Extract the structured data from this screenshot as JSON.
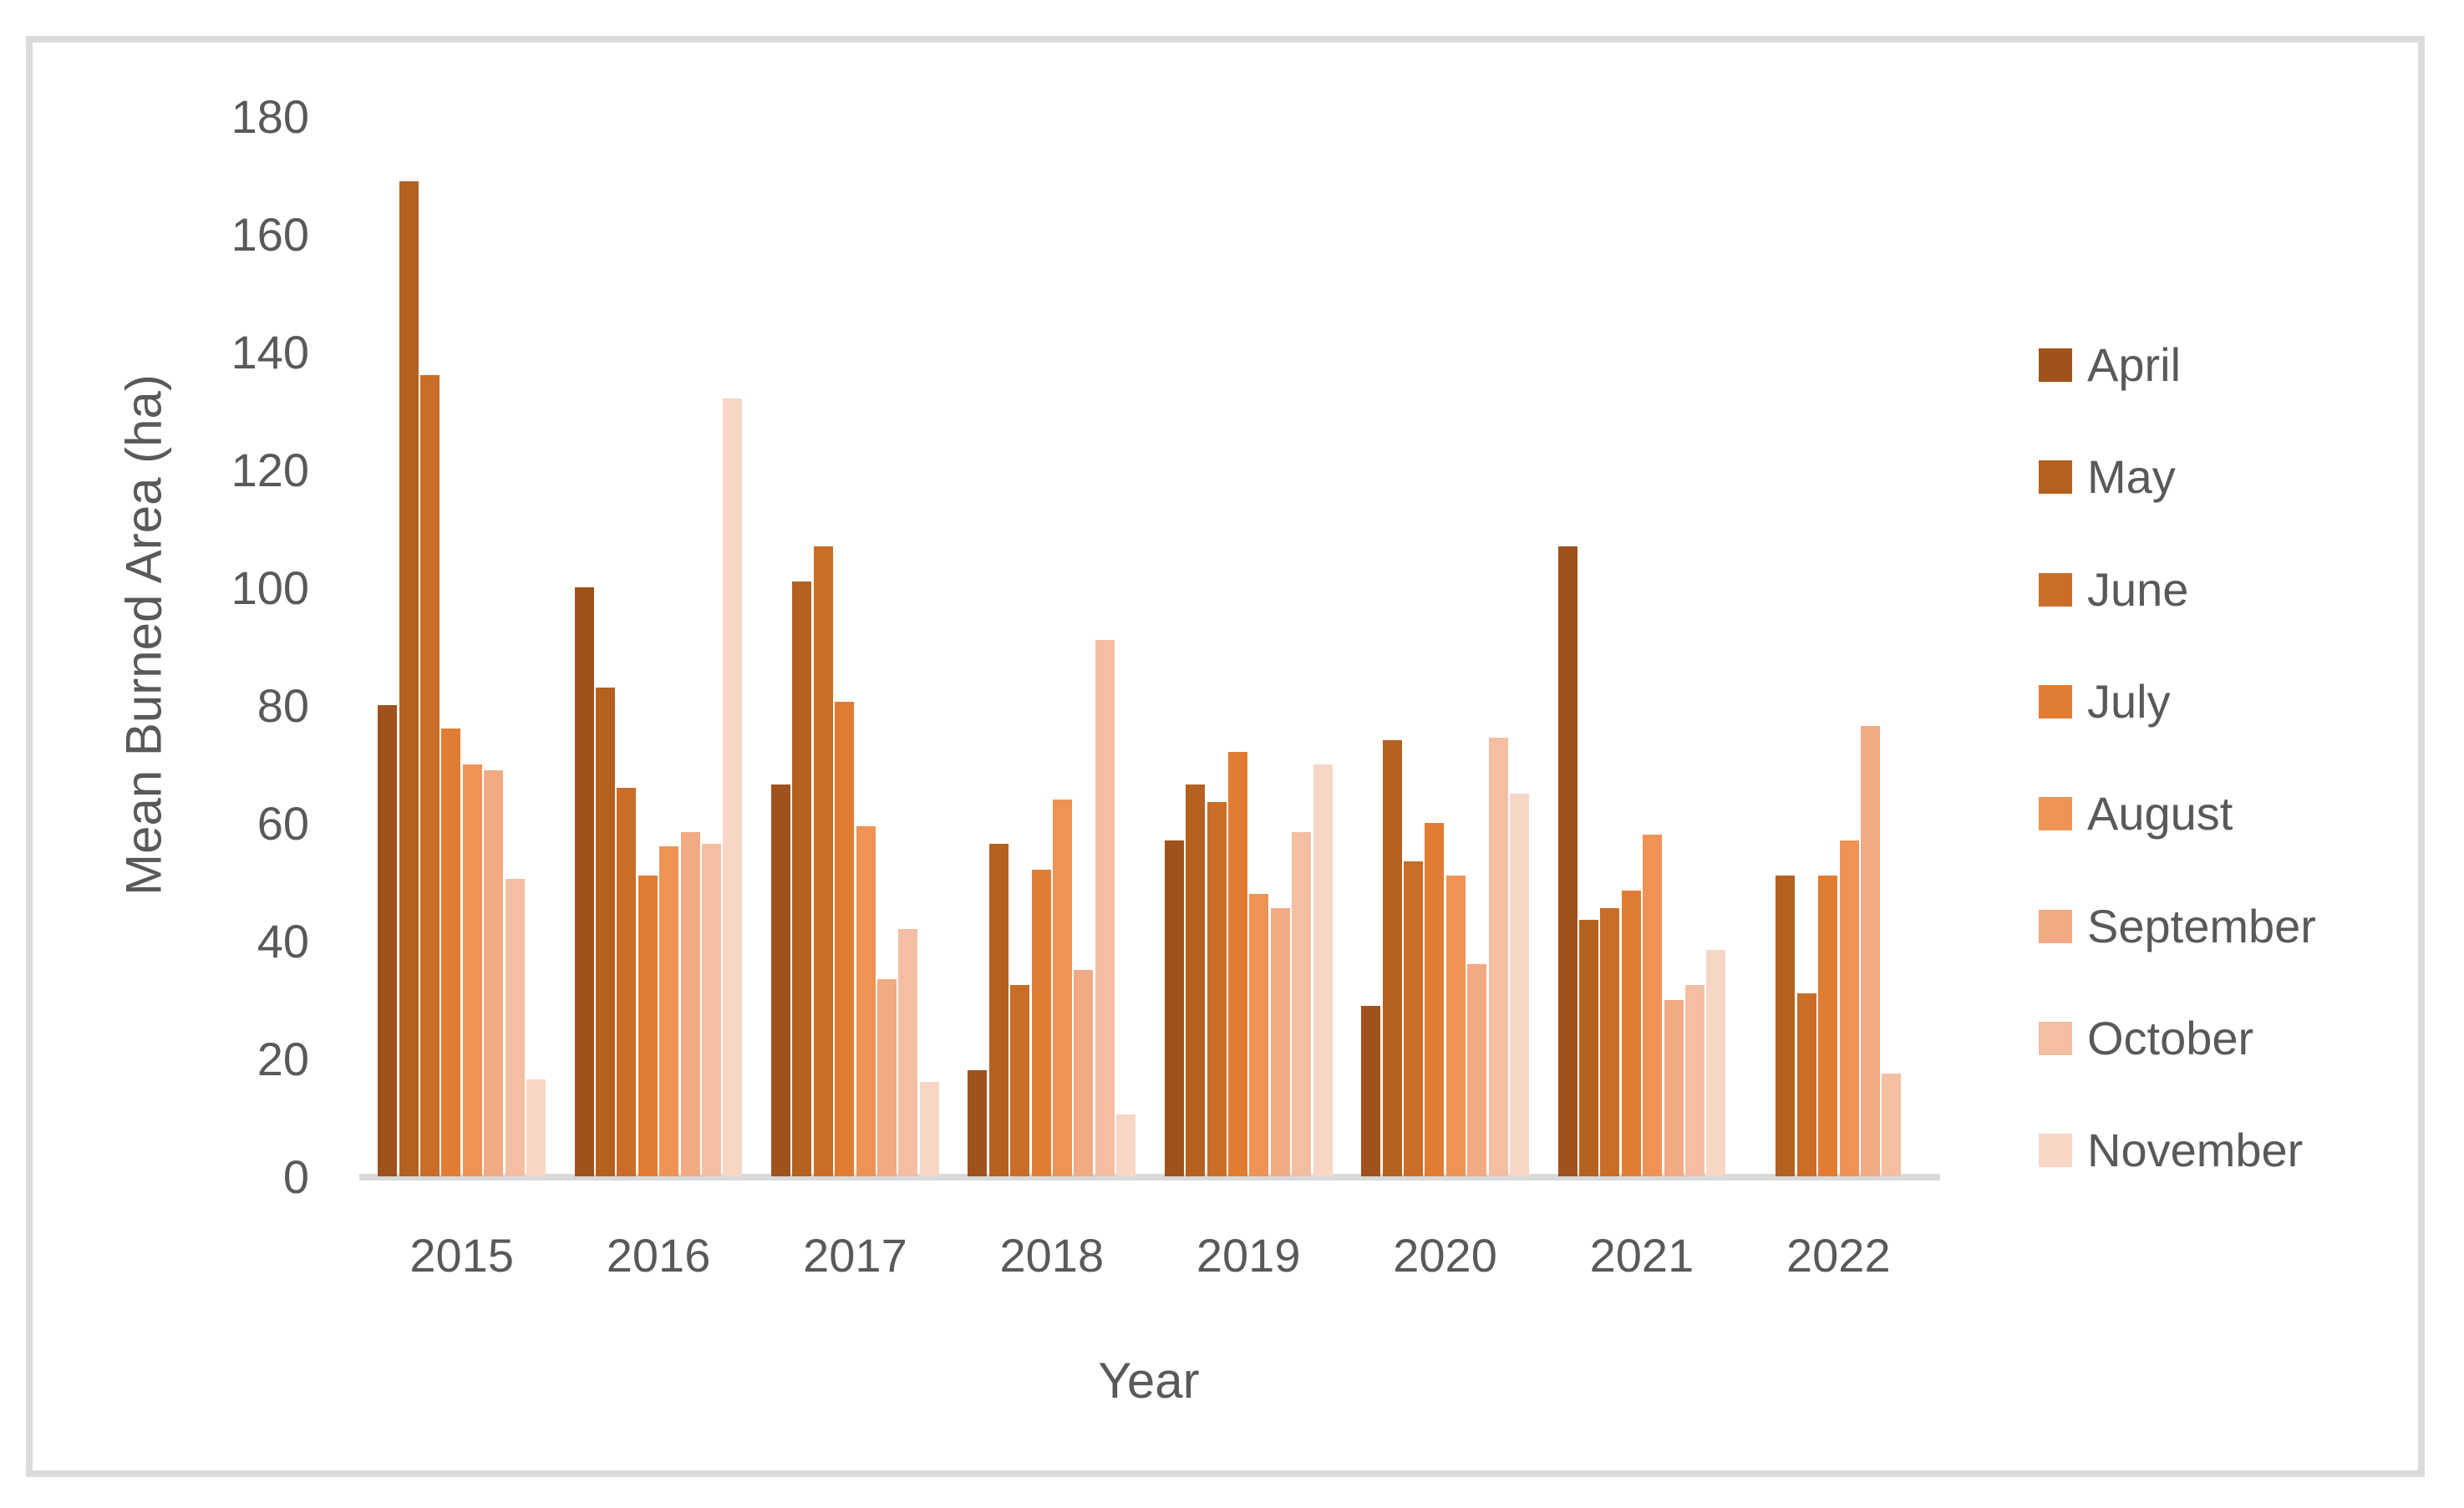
{
  "chart_data": {
    "type": "bar",
    "title": "",
    "xlabel": "Year",
    "ylabel": "Mean Burned Area (ha)",
    "ylim": [
      0,
      180
    ],
    "yticks": [
      0,
      20,
      40,
      60,
      80,
      100,
      120,
      140,
      160,
      180
    ],
    "grid": false,
    "legend_position": "right",
    "categories": [
      "2015",
      "2016",
      "2017",
      "2018",
      "2019",
      "2020",
      "2021",
      "2022"
    ],
    "series": [
      {
        "name": "April",
        "color": "#a0521d",
        "values": [
          80,
          100,
          66.5,
          18,
          57,
          29,
          107,
          null
        ]
      },
      {
        "name": "May",
        "color": "#b4611f",
        "values": [
          169,
          83,
          101,
          56.5,
          66.5,
          74,
          43.5,
          51
        ]
      },
      {
        "name": "June",
        "color": "#c96d28",
        "values": [
          136,
          66,
          107,
          32.5,
          63.5,
          53.5,
          45.5,
          31
        ]
      },
      {
        "name": "July",
        "color": "#e17d33",
        "values": [
          76,
          51,
          80.5,
          52,
          72,
          60,
          48.5,
          51
        ]
      },
      {
        "name": "August",
        "color": "#ee9355",
        "values": [
          70,
          56,
          59.5,
          64,
          48,
          51,
          58,
          57
        ]
      },
      {
        "name": "September",
        "color": "#f1aa83",
        "values": [
          69,
          58.5,
          33.5,
          35,
          45.5,
          36,
          30,
          76.5
        ]
      },
      {
        "name": "October",
        "color": "#f4bea2",
        "values": [
          50.5,
          56.5,
          42,
          91,
          58.5,
          74.5,
          32.5,
          17.5
        ]
      },
      {
        "name": "November",
        "color": "#f8d6c6",
        "values": [
          16.5,
          132,
          16,
          10.5,
          70,
          65,
          38.5,
          null
        ]
      }
    ]
  },
  "colors": {
    "axis_line": "#d9d9d9",
    "label_text": "#595959",
    "frame_border": "#dbdbdb",
    "background": "#ffffff"
  }
}
